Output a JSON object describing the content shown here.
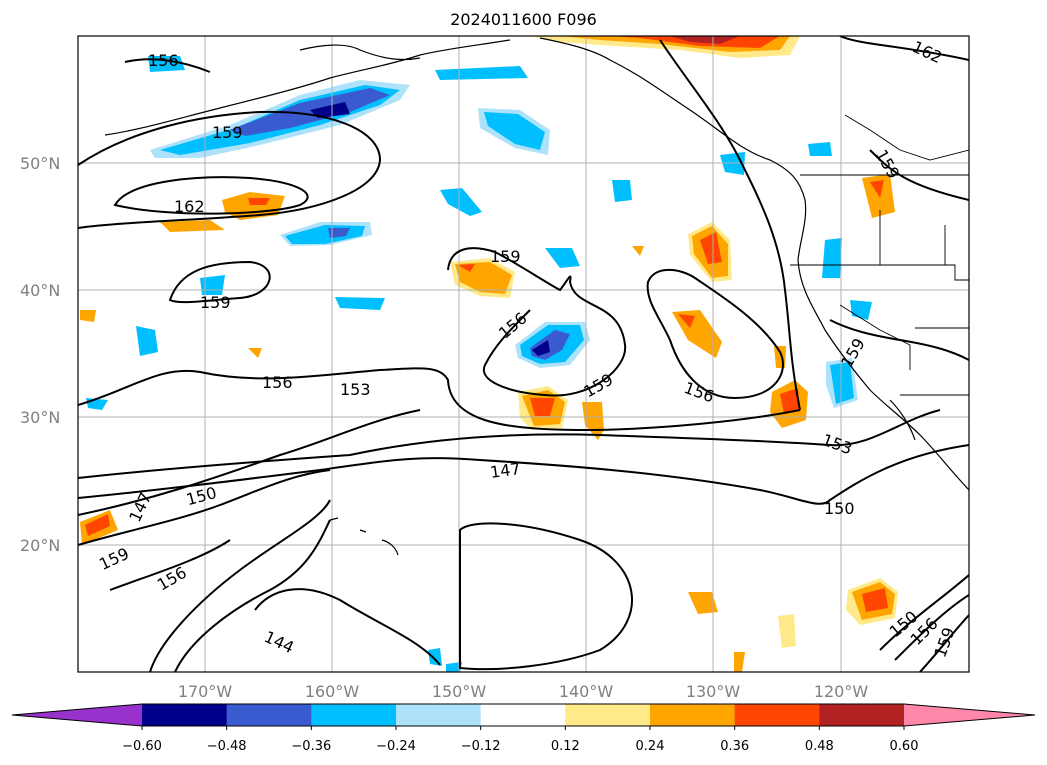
{
  "title": "2024011600 F096",
  "axes": {
    "lat_labels": [
      "50°N",
      "40°N",
      "30°N",
      "20°N"
    ],
    "lon_labels": [
      "170°W",
      "160°W",
      "150°W",
      "140°W",
      "130°W",
      "120°W"
    ]
  },
  "colorbar": {
    "ticks": [
      "−0.60",
      "−0.48",
      "−0.36",
      "−0.24",
      "−0.12",
      "0.12",
      "0.24",
      "0.36",
      "0.48",
      "0.60"
    ],
    "colors": [
      "#9932cc",
      "#00008b",
      "#3a5bd0",
      "#00bfff",
      "#aee2fa",
      "#ffffff",
      "#ffe989",
      "#ffa500",
      "#ff4500",
      "#b22222",
      "#ff88aa"
    ]
  },
  "contour_labels": [
    {
      "id": "c1",
      "text": "156"
    },
    {
      "id": "c2",
      "text": "159"
    },
    {
      "id": "c3",
      "text": "162"
    },
    {
      "id": "c4",
      "text": "159"
    },
    {
      "id": "c5",
      "text": "156"
    },
    {
      "id": "c6",
      "text": "153"
    },
    {
      "id": "c7",
      "text": "159"
    },
    {
      "id": "c8",
      "text": "156"
    },
    {
      "id": "c9",
      "text": "159"
    },
    {
      "id": "c10",
      "text": "156"
    },
    {
      "id": "c11",
      "text": "153"
    },
    {
      "id": "c12",
      "text": "150"
    },
    {
      "id": "c13",
      "text": "147"
    },
    {
      "id": "c14",
      "text": "150"
    },
    {
      "id": "c15",
      "text": "147"
    },
    {
      "id": "c16",
      "text": "159"
    },
    {
      "id": "c17",
      "text": "156"
    },
    {
      "id": "c18",
      "text": "144"
    },
    {
      "id": "c19",
      "text": "162"
    },
    {
      "id": "c20",
      "text": "159"
    },
    {
      "id": "c21",
      "text": "159"
    },
    {
      "id": "c22",
      "text": "150"
    },
    {
      "id": "c23",
      "text": "156"
    },
    {
      "id": "c24",
      "text": "159"
    }
  ],
  "colors": {
    "contour": "#000000",
    "grid": "#b0b0b0",
    "axis_label": "#808080"
  }
}
